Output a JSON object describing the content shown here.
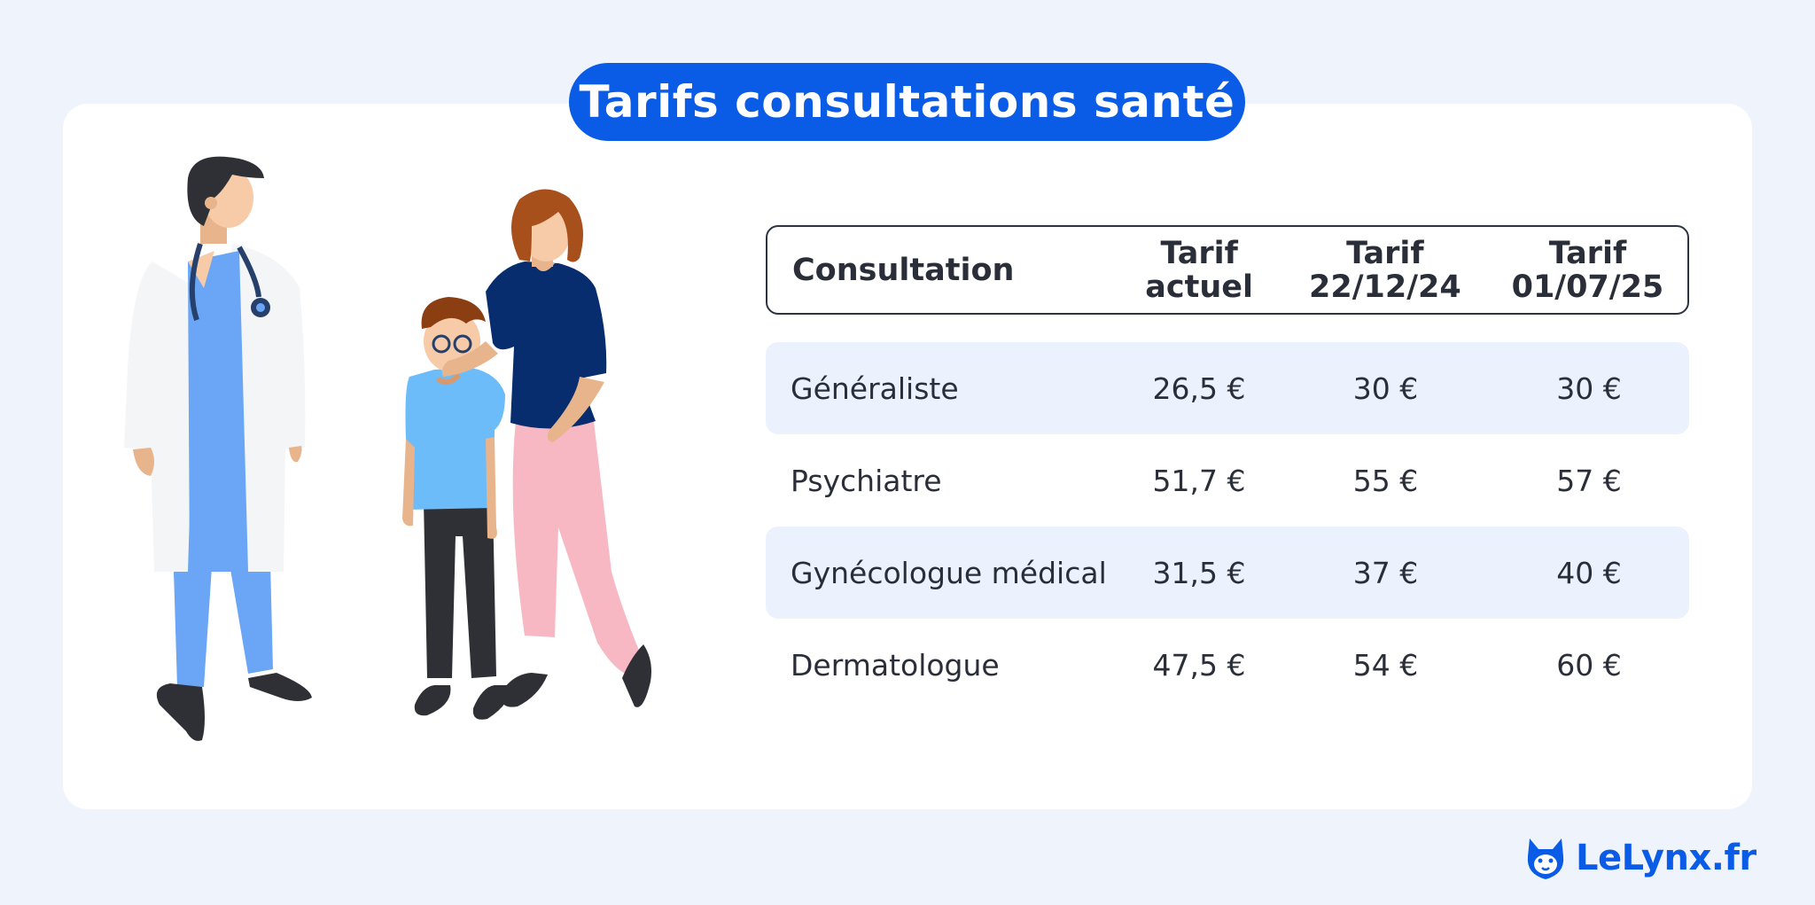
{
  "title": "Tarifs consultations santé",
  "table": {
    "headers": [
      {
        "line1": "Consultation",
        "line2": ""
      },
      {
        "line1": "Tarif",
        "line2": "actuel"
      },
      {
        "line1": "Tarif",
        "line2": "22/12/24"
      },
      {
        "line1": "Tarif",
        "line2": "01/07/25"
      }
    ],
    "rows": [
      [
        "Généraliste",
        "26,5 €",
        "30 €",
        "30 €"
      ],
      [
        "Psychiatre",
        "51,7 €",
        "55 €",
        "57 €"
      ],
      [
        "Gynécologue médical",
        "31,5 €",
        "37 €",
        "40 €"
      ],
      [
        "Dermatologue",
        "47,5 €",
        "54 €",
        "60 €"
      ]
    ]
  },
  "logo": {
    "text": "LeLynx.fr",
    "icon": "lynx-head-icon"
  },
  "colors": {
    "accent": "#0a5ce6",
    "background": "#eef3fc",
    "row_shade": "#ebf1fd",
    "text": "#2a2e38"
  }
}
